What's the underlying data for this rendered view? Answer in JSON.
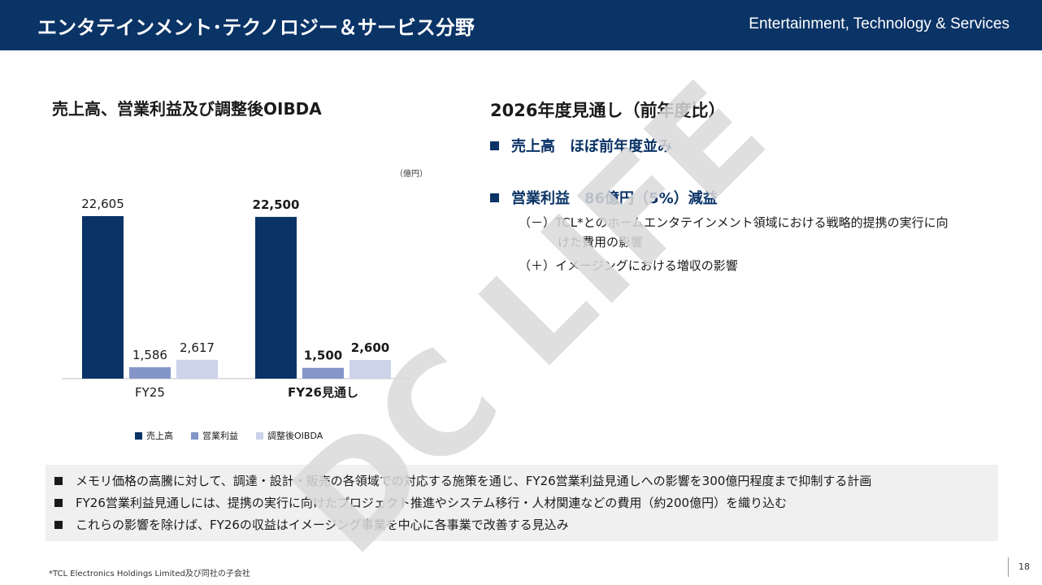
{
  "header": {
    "title": "エンタテインメント･テクノロジー＆サービス分野",
    "subtitle": "Entertainment, Technology & Services"
  },
  "left": {
    "title": "売上高、営業利益及び調整後OIBDA",
    "unit": "（億円）"
  },
  "chart_data": {
    "type": "bar",
    "categories": [
      "FY25",
      "FY26見通し"
    ],
    "series": [
      {
        "name": "売上高",
        "values": [
          22605,
          22500
        ],
        "labels": [
          "22,605",
          "22,500"
        ],
        "color": "#0a3366"
      },
      {
        "name": "営業利益",
        "values": [
          1586,
          1500
        ],
        "labels": [
          "1,586",
          "1,500"
        ],
        "color": "#8496c8"
      },
      {
        "name": "調整後OIBDA",
        "values": [
          2617,
          2600
        ],
        "labels": [
          "2,617",
          "2,600"
        ],
        "color": "#ccd3ea"
      }
    ],
    "bold_category_index": 1,
    "ylim": [
      0,
      22605
    ],
    "legend_position": "bottom",
    "grid": false
  },
  "right": {
    "title": "2026年度見通し（前年度比）",
    "point1": "売上高　ほぼ前年度並み",
    "point2": "営業利益　86億円（5%）減益",
    "sub1_line1": "（－）TCL*とのホームエンタテインメント領域における戦略的提携の実行に向",
    "sub1_line2": "けた費用の影響",
    "sub2": "（＋）イメージングにおける増収の影響"
  },
  "notes": [
    "メモリ価格の高騰に対して、調達・設計・販売の各領域での対応する施策を通じ、FY26営業利益見通しへの影響を300億円程度まで抑制する計画",
    "FY26営業利益見通しには、提携の実行に向けたプロジェクト推進やシステム移行・人材関連などの費用（約200億円）を織り込む",
    "これらの影響を除けば、FY26の収益はイメージング事業を中心に各事業で改善する見込み"
  ],
  "footnote": "*TCL Electronics Holdings Limited及び同社の子会社",
  "page_number": "18",
  "watermark": {
    "text": "DC LIFE",
    "color": "#d9d9d9"
  }
}
